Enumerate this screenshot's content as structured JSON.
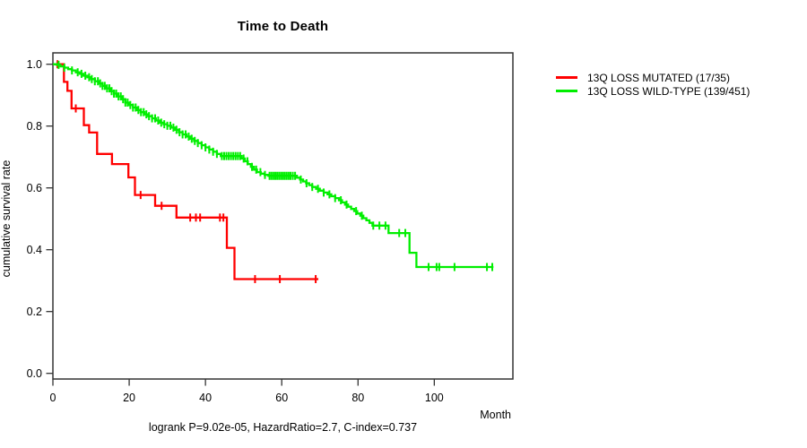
{
  "title": "Time to Death",
  "ylabel": "cumulative survival rate",
  "xlabel": "Month",
  "footer": "logrank P=9.02e-05, HazardRatio=2.7, C-index=0.737",
  "legend": [
    {
      "label": "13Q LOSS MUTATED (17/35)",
      "color": "#ff0000"
    },
    {
      "label": "13Q LOSS WILD-TYPE (139/451)",
      "color": "#00ee00"
    }
  ],
  "axes": {
    "x_tick_labels": [
      "0",
      "20",
      "40",
      "60",
      "80",
      "100"
    ],
    "x_tick_values": [
      0,
      20,
      40,
      60,
      80,
      100
    ],
    "y_tick_labels": [
      "0.0",
      "0.2",
      "0.4",
      "0.6",
      "0.8",
      "1.0"
    ],
    "y_tick_values": [
      0,
      0.2,
      0.4,
      0.6,
      0.8,
      1.0
    ]
  },
  "colors": {
    "mutated": "#ff0000",
    "wildtype": "#00ee00",
    "frame": "#333333",
    "text": "#000000"
  },
  "chart_data": {
    "type": "line",
    "subtype": "kaplan-meier-step",
    "title": "Time to Death",
    "xlabel": "Month",
    "ylabel": "cumulative survival rate",
    "xlim": [
      0,
      120.6
    ],
    "ylim": [
      0,
      1.0
    ],
    "grid": false,
    "legend_position": "right-outside",
    "series": [
      {
        "name": "13Q LOSS MUTATED (17/35)",
        "color": "#ff0000",
        "events": "17/35",
        "points": [
          [
            0,
            1.0
          ],
          [
            2.9,
            0.943
          ],
          [
            3.8,
            0.914
          ],
          [
            4.9,
            0.857
          ],
          [
            8.1,
            0.803
          ],
          [
            9.5,
            0.779
          ],
          [
            11.6,
            0.71
          ],
          [
            15.5,
            0.677
          ],
          [
            19.8,
            0.634
          ],
          [
            21.5,
            0.577
          ],
          [
            26.8,
            0.542
          ],
          [
            32.4,
            0.504
          ],
          [
            45.6,
            0.406
          ],
          [
            47.6,
            0.305
          ]
        ],
        "end_month": 69.6,
        "censor_months": [
          1.2,
          6.0,
          23.0,
          28.5,
          36.0,
          37.5,
          38.6,
          43.8,
          44.7,
          53.0,
          59.5,
          68.9
        ]
      },
      {
        "name": "13Q LOSS WILD-TYPE (139/451)",
        "color": "#00ee00",
        "events": "139/451",
        "points": [
          [
            0,
            1.0
          ],
          [
            1,
            0.998
          ],
          [
            2,
            0.993
          ],
          [
            3,
            0.989
          ],
          [
            4,
            0.984
          ],
          [
            5,
            0.98
          ],
          [
            6,
            0.974
          ],
          [
            7,
            0.969
          ],
          [
            8,
            0.963
          ],
          [
            9,
            0.958
          ],
          [
            10,
            0.952
          ],
          [
            11,
            0.945
          ],
          [
            12,
            0.938
          ],
          [
            13,
            0.93
          ],
          [
            14,
            0.922
          ],
          [
            15,
            0.913
          ],
          [
            16,
            0.905
          ],
          [
            17,
            0.896
          ],
          [
            18,
            0.887
          ],
          [
            19,
            0.876
          ],
          [
            20,
            0.868
          ],
          [
            21,
            0.86
          ],
          [
            22,
            0.852
          ],
          [
            23,
            0.845
          ],
          [
            24,
            0.838
          ],
          [
            25,
            0.832
          ],
          [
            26,
            0.825
          ],
          [
            27,
            0.818
          ],
          [
            28,
            0.811
          ],
          [
            29,
            0.806
          ],
          [
            30,
            0.801
          ],
          [
            31,
            0.795
          ],
          [
            32,
            0.788
          ],
          [
            33,
            0.78
          ],
          [
            34,
            0.773
          ],
          [
            35,
            0.766
          ],
          [
            36,
            0.759
          ],
          [
            37,
            0.752
          ],
          [
            38,
            0.745
          ],
          [
            39,
            0.738
          ],
          [
            40,
            0.731
          ],
          [
            41,
            0.724
          ],
          [
            42,
            0.717
          ],
          [
            43,
            0.71
          ],
          [
            44,
            0.703
          ],
          [
            49.5,
            0.695
          ],
          [
            50.3,
            0.686
          ],
          [
            51.1,
            0.677
          ],
          [
            51.9,
            0.668
          ],
          [
            52.7,
            0.659
          ],
          [
            53.5,
            0.651
          ],
          [
            54.5,
            0.646
          ],
          [
            55.5,
            0.642
          ],
          [
            56.5,
            0.639
          ],
          [
            64,
            0.633
          ],
          [
            64.8,
            0.627
          ],
          [
            65.6,
            0.621
          ],
          [
            66.4,
            0.615
          ],
          [
            67.2,
            0.609
          ],
          [
            68,
            0.603
          ],
          [
            69,
            0.597
          ],
          [
            70,
            0.591
          ],
          [
            71,
            0.585
          ],
          [
            72,
            0.579
          ],
          [
            73,
            0.573
          ],
          [
            74,
            0.567
          ],
          [
            75,
            0.56
          ],
          [
            75.8,
            0.553
          ],
          [
            76.6,
            0.546
          ],
          [
            77.4,
            0.539
          ],
          [
            78.2,
            0.532
          ],
          [
            79,
            0.525
          ],
          [
            79.8,
            0.517
          ],
          [
            80.6,
            0.51
          ],
          [
            81.4,
            0.502
          ],
          [
            82.2,
            0.495
          ],
          [
            83,
            0.487
          ],
          [
            83.8,
            0.478
          ],
          [
            88,
            0.454
          ],
          [
            93.5,
            0.39
          ],
          [
            95.3,
            0.344
          ]
        ],
        "end_month": 115.5,
        "censor_months": [
          1.5,
          3.0,
          5.0,
          6.5,
          7.5,
          8.5,
          9.5,
          10.2,
          11.0,
          11.8,
          12.4,
          13.0,
          13.6,
          14.2,
          14.8,
          15.4,
          16.0,
          16.6,
          17.2,
          17.8,
          18.4,
          19.0,
          19.6,
          20.3,
          21.0,
          21.7,
          22.4,
          23.1,
          23.8,
          24.5,
          25.2,
          26.0,
          26.8,
          27.6,
          28.4,
          29.2,
          30.0,
          30.8,
          31.6,
          32.4,
          33.2,
          34.0,
          34.8,
          35.6,
          36.4,
          37.2,
          38.0,
          39.0,
          40.0,
          41.0,
          42.0,
          43.0,
          44.3,
          44.9,
          45.5,
          46.1,
          46.7,
          47.3,
          47.9,
          48.5,
          49.1,
          50.0,
          51.0,
          52.2,
          53.3,
          54.4,
          55.6,
          56.8,
          57.3,
          57.8,
          58.3,
          58.8,
          59.3,
          59.8,
          60.3,
          60.8,
          61.3,
          61.8,
          62.3,
          62.9,
          63.5,
          65.0,
          66.5,
          68.0,
          69.5,
          71.0,
          72.5,
          74.0,
          75.5,
          77.0,
          79.5,
          81.0,
          84.0,
          85.6,
          87.2,
          90.8,
          92.4,
          98.5,
          100.6,
          101.3,
          105.3,
          113.8,
          115.2
        ]
      }
    ]
  }
}
